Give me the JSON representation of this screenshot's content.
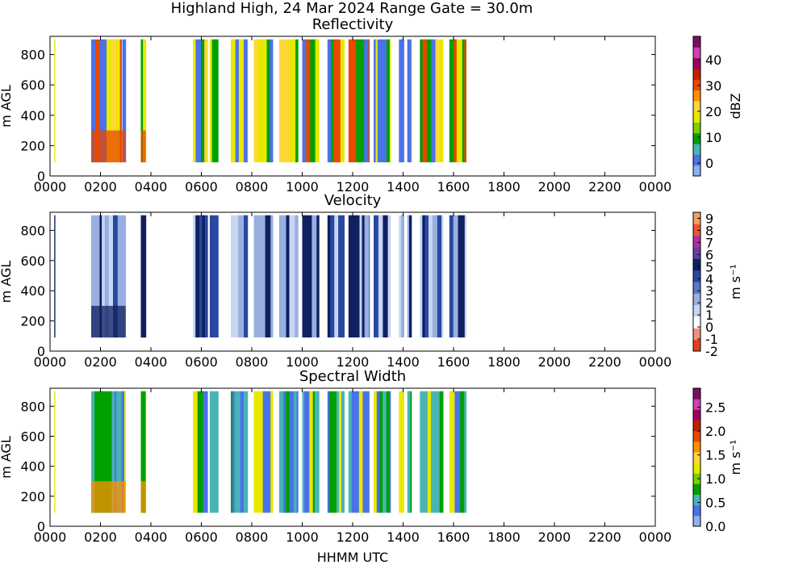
{
  "figure": {
    "suptitle": "Highland High, 24 Mar 2024 Range Gate = 30.0m",
    "xlabel": "HHMM UTC"
  },
  "chart_data": [
    {
      "type": "heatmap",
      "title": "Reflectivity",
      "xlabel": "HHMM UTC",
      "ylabel": "m AGL",
      "xticks": [
        "0000",
        "0200",
        "0400",
        "0600",
        "0800",
        "1000",
        "1200",
        "1400",
        "1600",
        "1800",
        "2000",
        "2200",
        "0000"
      ],
      "yticks": [
        0,
        200,
        400,
        600,
        800
      ],
      "ylim": [
        0,
        920
      ],
      "data_range_m": [
        90,
        900
      ],
      "colorbar": {
        "label": "dBZ",
        "ticks": [
          0,
          10,
          20,
          30,
          40
        ],
        "range": [
          -5,
          49
        ],
        "colors": [
          "#8fb0f0",
          "#4a72ea",
          "#49b4b4",
          "#00a000",
          "#7ad000",
          "#e8e800",
          "#ffd838",
          "#ff9000",
          "#e84800",
          "#c02000",
          "#a00060",
          "#d040b0",
          "#7a1060"
        ]
      },
      "echo_minutes": [
        [
          10,
          12
        ],
        [
          98,
          170
        ],
        [
          172,
          180
        ],
        [
          216,
          228
        ],
        [
          340,
          375
        ],
        [
          380,
          400
        ],
        [
          430,
          470
        ],
        [
          485,
          530
        ],
        [
          545,
          590
        ],
        [
          600,
          640
        ],
        [
          660,
          700
        ],
        [
          710,
          760
        ],
        [
          770,
          810
        ],
        [
          830,
          842
        ],
        [
          850,
          860
        ],
        [
          880,
          935
        ],
        [
          950,
          990
        ]
      ],
      "dominant_colors": [
        "#ffd838",
        "#e8e800",
        "#00a000",
        "#e84800",
        "#4a72ea"
      ]
    },
    {
      "type": "heatmap",
      "title": "Velocity",
      "xlabel": "HHMM UTC",
      "ylabel": "m AGL",
      "xticks": [
        "0000",
        "0200",
        "0400",
        "0600",
        "0800",
        "1000",
        "1200",
        "1400",
        "1600",
        "1800",
        "2000",
        "2200",
        "0000"
      ],
      "yticks": [
        0,
        200,
        400,
        600,
        800
      ],
      "ylim": [
        0,
        920
      ],
      "data_range_m": [
        90,
        900
      ],
      "colorbar": {
        "label": "m s⁻¹",
        "ticks": [
          -2,
          -1,
          0,
          1,
          2,
          3,
          4,
          5,
          6,
          7,
          8,
          9
        ],
        "range": [
          -2,
          9.5
        ],
        "colors": [
          "#e04020",
          "#f09080",
          "#ffffff",
          "#c8d6f0",
          "#98b0e0",
          "#5878c8",
          "#2848a0",
          "#102060",
          "#6040a0",
          "#b030a0",
          "#e85830",
          "#f0a060"
        ]
      },
      "echo_minutes": [
        [
          10,
          12
        ],
        [
          98,
          180
        ],
        [
          216,
          228
        ],
        [
          340,
          375
        ],
        [
          380,
          400
        ],
        [
          430,
          470
        ],
        [
          485,
          530
        ],
        [
          545,
          590
        ],
        [
          600,
          640
        ],
        [
          660,
          700
        ],
        [
          710,
          760
        ],
        [
          770,
          810
        ],
        [
          830,
          842
        ],
        [
          850,
          860
        ],
        [
          880,
          935
        ],
        [
          950,
          990
        ]
      ],
      "dominant_colors": [
        "#c8d6f0",
        "#98b0e0",
        "#2848a0",
        "#102060"
      ]
    },
    {
      "type": "heatmap",
      "title": "Spectral Width",
      "xlabel": "HHMM UTC",
      "ylabel": "m AGL",
      "xticks": [
        "0000",
        "0200",
        "0400",
        "0600",
        "0800",
        "1000",
        "1200",
        "1400",
        "1600",
        "1800",
        "2000",
        "2200",
        "0000"
      ],
      "yticks": [
        0,
        200,
        400,
        600,
        800
      ],
      "ylim": [
        0,
        920
      ],
      "data_range_m": [
        90,
        900
      ],
      "colorbar": {
        "label": "m s⁻¹",
        "ticks": [
          "0.0",
          "0.5",
          "1.0",
          "1.5",
          "2.0",
          "2.5"
        ],
        "range": [
          0,
          2.9
        ],
        "colors": [
          "#8fb0f0",
          "#4a72ea",
          "#49b4b4",
          "#00a000",
          "#7ad000",
          "#e8e800",
          "#ffd838",
          "#ff9000",
          "#e84800",
          "#c02000",
          "#a00060",
          "#d040b0",
          "#7a1060"
        ]
      },
      "echo_minutes": [
        [
          10,
          12
        ],
        [
          98,
          180
        ],
        [
          216,
          228
        ],
        [
          340,
          375
        ],
        [
          380,
          400
        ],
        [
          430,
          470
        ],
        [
          485,
          530
        ],
        [
          545,
          590
        ],
        [
          600,
          640
        ],
        [
          660,
          700
        ],
        [
          710,
          760
        ],
        [
          770,
          810
        ],
        [
          830,
          842
        ],
        [
          850,
          860
        ],
        [
          880,
          935
        ],
        [
          950,
          990
        ]
      ],
      "dominant_colors": [
        "#4a72ea",
        "#49b4b4",
        "#00a000",
        "#e8e800"
      ]
    }
  ]
}
